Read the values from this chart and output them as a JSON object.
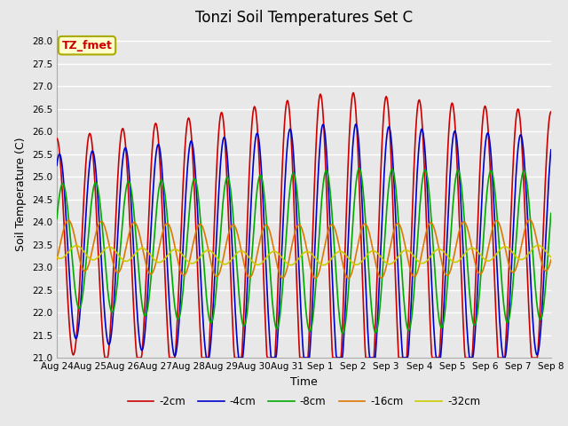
{
  "title": "Tonzi Soil Temperatures Set C",
  "xlabel": "Time",
  "ylabel": "Soil Temperature (C)",
  "ylim": [
    21.0,
    28.25
  ],
  "yticks": [
    21.0,
    21.5,
    22.0,
    22.5,
    23.0,
    23.5,
    24.0,
    24.5,
    25.0,
    25.5,
    26.0,
    26.5,
    27.0,
    27.5,
    28.0
  ],
  "x_tick_labels": [
    "Aug 24",
    "Aug 25",
    "Aug 26",
    "Aug 27",
    "Aug 28",
    "Aug 29",
    "Aug 30",
    "Aug 31",
    "Sep 1",
    "Sep 2",
    "Sep 3",
    "Sep 4",
    "Sep 5",
    "Sep 6",
    "Sep 7",
    "Sep 8"
  ],
  "series": {
    "-2cm": {
      "color": "#cc0000",
      "lw": 1.2
    },
    "-4cm": {
      "color": "#0000cc",
      "lw": 1.2
    },
    "-8cm": {
      "color": "#00aa00",
      "lw": 1.2
    },
    "-16cm": {
      "color": "#dd7700",
      "lw": 1.2
    },
    "-32cm": {
      "color": "#cccc00",
      "lw": 1.2
    }
  },
  "bg_color": "#e8e8e8",
  "grid_color": "#ffffff",
  "title_fontsize": 12,
  "axis_fontsize": 9,
  "tick_fontsize": 7.5
}
